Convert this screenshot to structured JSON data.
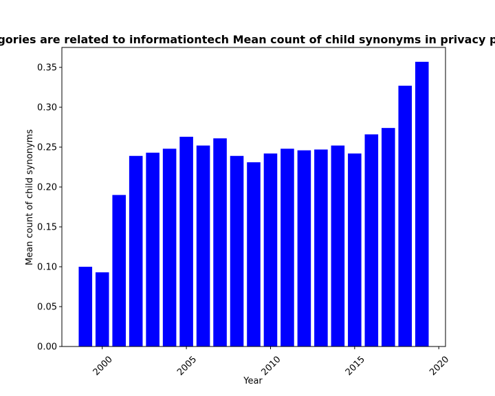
{
  "chart_data": {
    "type": "bar",
    "title": "Categories are related to informationtech Mean count of child synonyms in privacy policies",
    "xlabel": "Year",
    "ylabel": "Mean count of child synonyms",
    "x": [
      1999,
      2000,
      2001,
      2002,
      2003,
      2004,
      2005,
      2006,
      2007,
      2008,
      2009,
      2010,
      2011,
      2012,
      2013,
      2014,
      2015,
      2016,
      2017,
      2018,
      2019
    ],
    "values": [
      0.1,
      0.093,
      0.19,
      0.239,
      0.243,
      0.248,
      0.263,
      0.252,
      0.261,
      0.239,
      0.231,
      0.242,
      0.248,
      0.246,
      0.247,
      0.252,
      0.242,
      0.266,
      0.274,
      0.327,
      0.357
    ],
    "xlim": [
      1997.6,
      2020.4
    ],
    "ylim": [
      0,
      0.375
    ],
    "xticks": [
      2000,
      2005,
      2010,
      2015,
      2020
    ],
    "xtick_labels": [
      "2000",
      "2005",
      "2010",
      "2015",
      "2020"
    ],
    "yticks": [
      0.0,
      0.05,
      0.1,
      0.15,
      0.2,
      0.25,
      0.3,
      0.35
    ],
    "ytick_labels": [
      "0.00",
      "0.05",
      "0.10",
      "0.15",
      "0.20",
      "0.25",
      "0.30",
      "0.35"
    ],
    "bar_color": "#0000ff",
    "grid": false,
    "legend": "none"
  }
}
